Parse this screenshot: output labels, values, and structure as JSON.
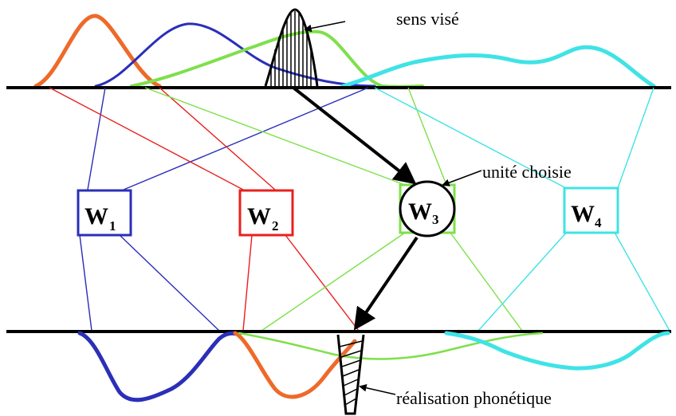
{
  "annotations": {
    "sens_vise": "sens visé",
    "unite_choisie": "unité choisie",
    "realisation_phonetique": "réalisation phonétique"
  },
  "words": [
    {
      "letter": "W",
      "index": "1",
      "color": "#2b2fb8"
    },
    {
      "letter": "W",
      "index": "2",
      "color": "#e8201e"
    },
    {
      "letter": "W",
      "index": "3",
      "color": "#7ee04a"
    },
    {
      "letter": "W",
      "index": "4",
      "color": "#3fe3e6"
    }
  ],
  "colors": {
    "w1": "#2b2fb8",
    "w2": "#e8201e",
    "w3": "#7ee04a",
    "w4": "#3fe3e6",
    "top_curve_orange": "#ee6a2a",
    "bottom_curve_orange": "#ee6a2a",
    "black": "#000000"
  }
}
